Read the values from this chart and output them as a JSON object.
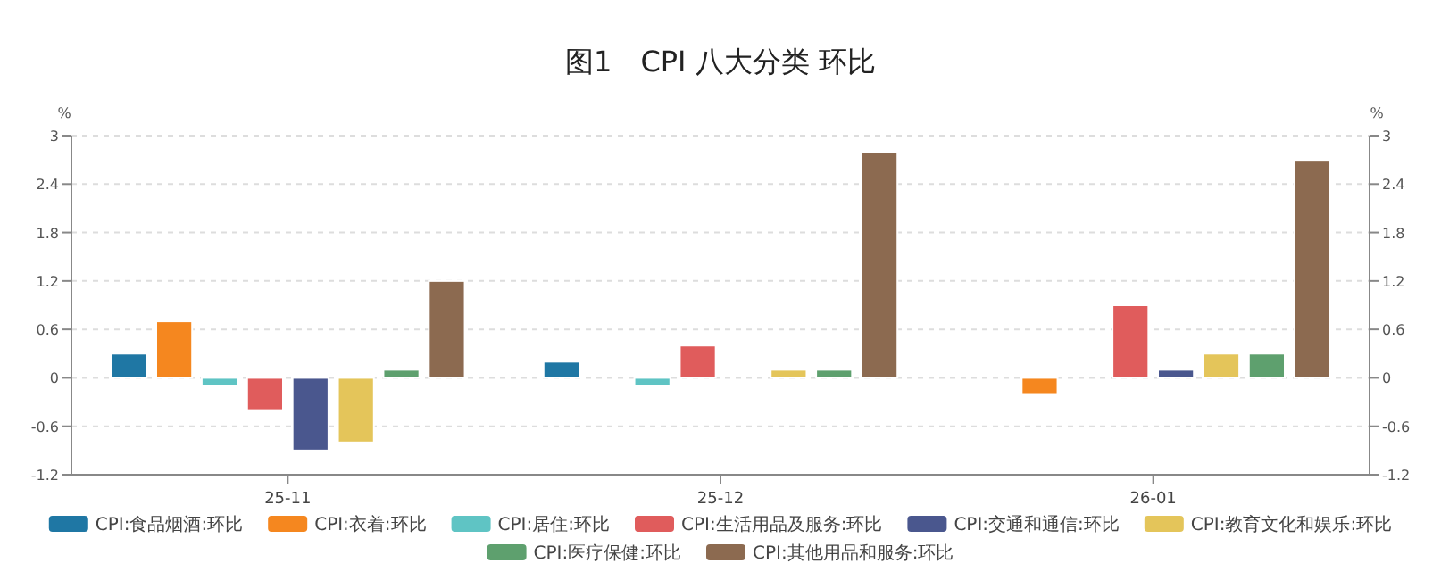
{
  "chart_data": {
    "type": "bar",
    "title": "图1　CPI 八大分类 环比",
    "categories": [
      "25-11",
      "25-12",
      "26-01"
    ],
    "series": [
      {
        "name": "CPI:食品烟酒:环比",
        "color": "#1f77a4",
        "values": [
          0.3,
          0.2,
          0
        ]
      },
      {
        "name": "CPI:衣着:环比",
        "color": "#f5871f",
        "values": [
          0.7,
          0,
          -0.2
        ]
      },
      {
        "name": "CPI:居住:环比",
        "color": "#5fc4c4",
        "values": [
          -0.1,
          -0.1,
          0
        ]
      },
      {
        "name": "CPI:生活用品及服务:环比",
        "color": "#e05c5c",
        "values": [
          -0.4,
          0.4,
          0.9
        ]
      },
      {
        "name": "CPI:交通和通信:环比",
        "color": "#4a578e",
        "values": [
          -0.9,
          0,
          0.1
        ]
      },
      {
        "name": "CPI:教育文化和娱乐:环比",
        "color": "#e4c55a",
        "values": [
          -0.8,
          0.1,
          0.3
        ]
      },
      {
        "name": "CPI:医疗保健:环比",
        "color": "#5ea06e",
        "values": [
          0.1,
          0.1,
          0.3
        ]
      },
      {
        "name": "CPI:其他用品和服务:环比",
        "color": "#8c6a50",
        "values": [
          1.2,
          2.8,
          2.7
        ]
      }
    ],
    "ylabel": "%",
    "y2label": "%",
    "ylim": [
      -1.2,
      3
    ],
    "yticks": [
      -1.2,
      -0.6,
      0,
      0.6,
      1.2,
      1.8,
      2.4,
      3
    ],
    "y2lim": [
      -1.2,
      3
    ],
    "y2ticks": [
      -1.2,
      -0.6,
      0,
      0.6,
      1.2,
      1.8,
      2.4,
      3
    ],
    "grid": "y",
    "legend": "bottom"
  }
}
